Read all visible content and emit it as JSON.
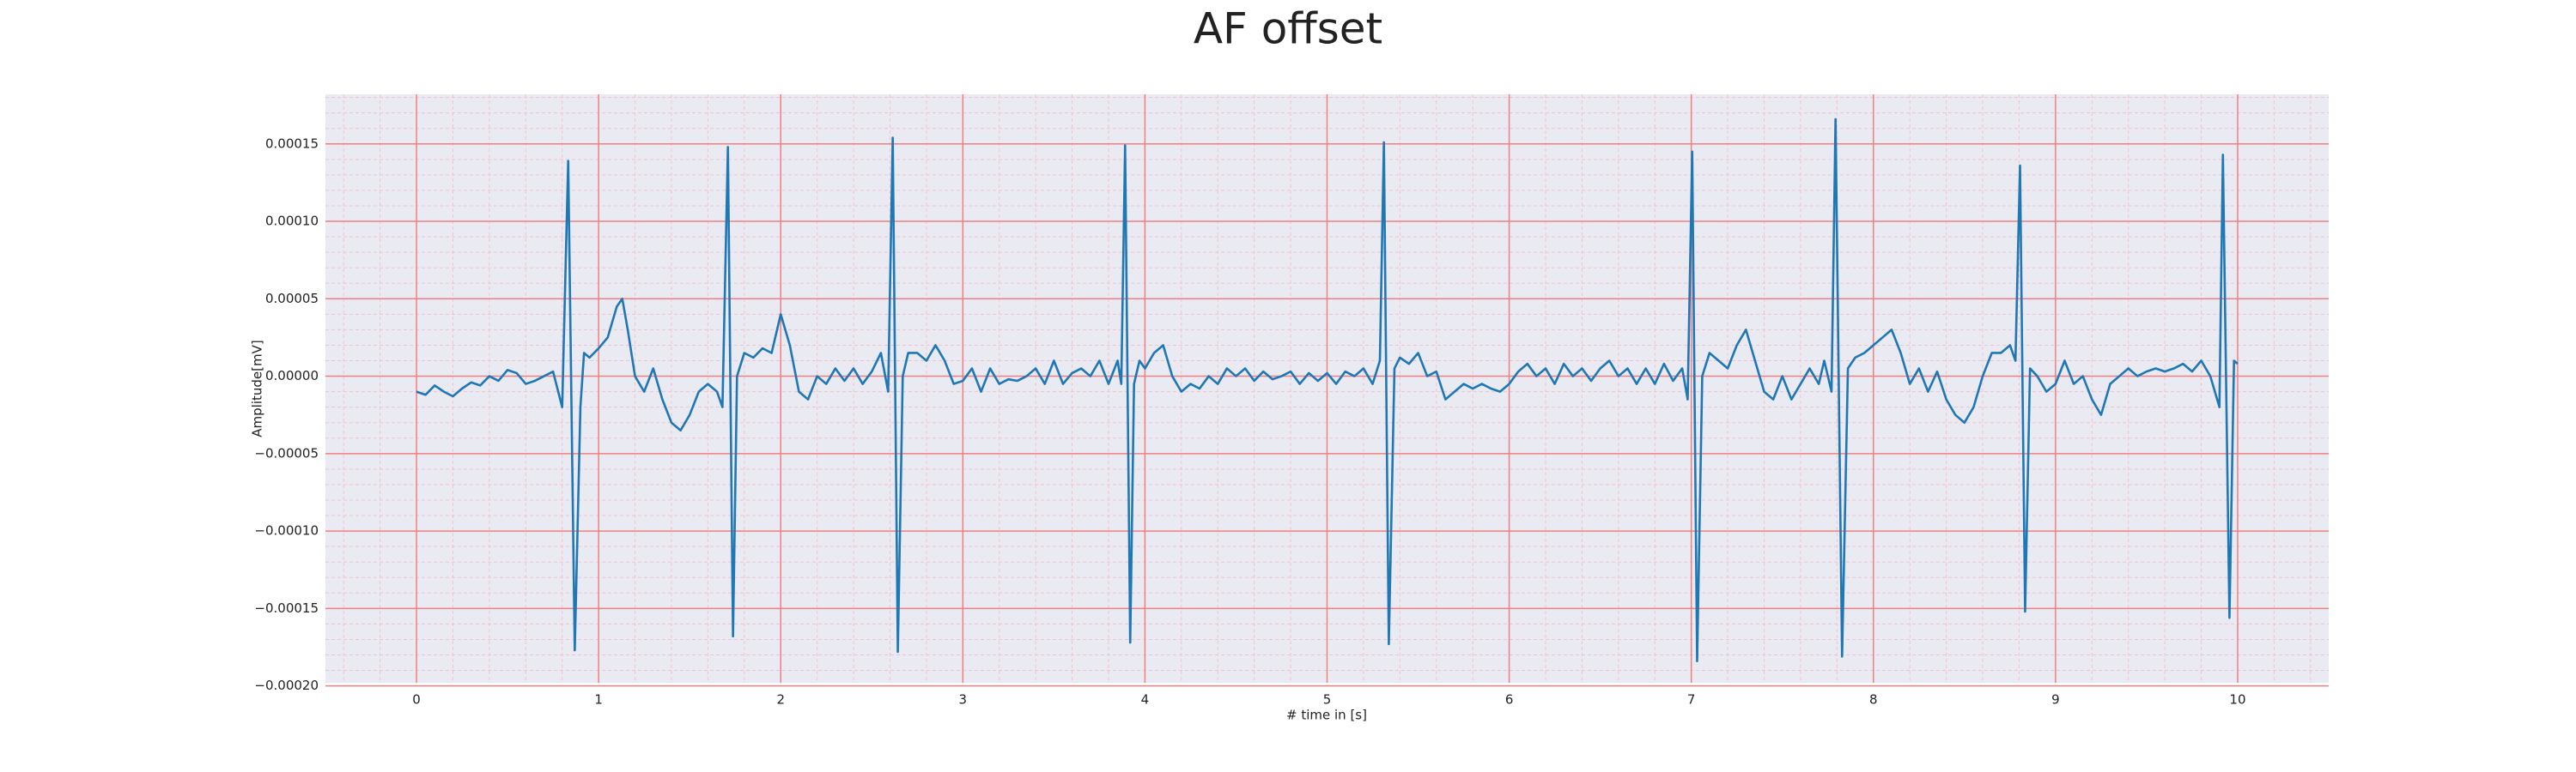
{
  "chart_data": {
    "type": "line",
    "title": "AF offset",
    "xlabel": "# time in [s]",
    "ylabel": "Amplitude[mV]",
    "xlim": [
      -0.5,
      10.5
    ],
    "ylim": [
      -0.000198,
      0.000182
    ],
    "xticks": [
      0,
      1,
      2,
      3,
      4,
      5,
      6,
      7,
      8,
      9,
      10
    ],
    "yticks": [
      {
        "value": -0.0002,
        "label": "−0.00020"
      },
      {
        "value": -0.00015,
        "label": "−0.00015"
      },
      {
        "value": -0.0001,
        "label": "−0.00010"
      },
      {
        "value": -5e-05,
        "label": "−0.00005"
      },
      {
        "value": 0,
        "label": "0.00000"
      },
      {
        "value": 5e-05,
        "label": "0.00005"
      },
      {
        "value": 0.0001,
        "label": "0.00010"
      },
      {
        "value": 0.00015,
        "label": "0.00015"
      }
    ],
    "grid": true,
    "grid_color": "#f08080",
    "minor_grid": {
      "x": 0.2,
      "y": 1e-05,
      "color": "#f4c4cc"
    },
    "background": "#eaeaf2",
    "x": [
      0,
      0.05,
      0.1,
      0.15,
      0.2,
      0.25,
      0.3,
      0.35,
      0.4,
      0.45,
      0.5,
      0.55,
      0.6,
      0.65,
      0.7,
      0.75,
      0.8,
      0.833,
      0.869,
      0.9,
      0.92,
      0.95,
      1.0,
      1.05,
      1.1,
      1.13,
      1.16,
      1.2,
      1.25,
      1.3,
      1.35,
      1.4,
      1.45,
      1.5,
      1.55,
      1.6,
      1.65,
      1.68,
      1.71,
      1.738,
      1.76,
      1.8,
      1.85,
      1.9,
      1.95,
      2.0,
      2.05,
      2.1,
      2.15,
      2.2,
      2.25,
      2.3,
      2.35,
      2.4,
      2.45,
      2.5,
      2.55,
      2.59,
      2.615,
      2.643,
      2.67,
      2.7,
      2.75,
      2.8,
      2.85,
      2.9,
      2.95,
      3.0,
      3.05,
      3.1,
      3.15,
      3.2,
      3.25,
      3.3,
      3.35,
      3.4,
      3.45,
      3.5,
      3.55,
      3.6,
      3.65,
      3.7,
      3.75,
      3.8,
      3.85,
      3.87,
      3.891,
      3.919,
      3.94,
      3.97,
      4.0,
      4.05,
      4.1,
      4.15,
      4.2,
      4.25,
      4.3,
      4.35,
      4.4,
      4.45,
      4.5,
      4.55,
      4.6,
      4.65,
      4.7,
      4.75,
      4.8,
      4.85,
      4.9,
      4.95,
      5.0,
      5.05,
      5.1,
      5.15,
      5.2,
      5.25,
      5.29,
      5.312,
      5.339,
      5.37,
      5.4,
      5.45,
      5.5,
      5.55,
      5.6,
      5.65,
      5.7,
      5.75,
      5.8,
      5.85,
      5.9,
      5.95,
      6.0,
      6.05,
      6.1,
      6.15,
      6.2,
      6.25,
      6.3,
      6.35,
      6.4,
      6.45,
      6.5,
      6.55,
      6.6,
      6.65,
      6.7,
      6.75,
      6.8,
      6.85,
      6.9,
      6.95,
      6.98,
      7.005,
      7.032,
      7.06,
      7.1,
      7.15,
      7.2,
      7.25,
      7.3,
      7.35,
      7.4,
      7.45,
      7.5,
      7.55,
      7.6,
      7.65,
      7.7,
      7.73,
      7.77,
      7.792,
      7.828,
      7.86,
      7.9,
      7.95,
      8.0,
      8.05,
      8.1,
      8.15,
      8.2,
      8.25,
      8.3,
      8.35,
      8.4,
      8.45,
      8.5,
      8.55,
      8.6,
      8.65,
      8.7,
      8.75,
      8.78,
      8.805,
      8.833,
      8.86,
      8.9,
      8.95,
      9.0,
      9.05,
      9.1,
      9.15,
      9.2,
      9.25,
      9.3,
      9.35,
      9.4,
      9.45,
      9.5,
      9.55,
      9.6,
      9.65,
      9.7,
      9.75,
      9.8,
      9.85,
      9.9,
      9.919,
      9.955,
      9.98,
      10.0
    ],
    "series": [
      {
        "name": "AF offset",
        "color": "#1f77b4",
        "values": [
          -1e-05,
          -1.2e-05,
          -6e-06,
          -1e-05,
          -1.3e-05,
          -8e-06,
          -4e-06,
          -6e-06,
          0,
          -3e-06,
          4e-06,
          2e-06,
          -5e-06,
          -3e-06,
          0,
          3e-06,
          -2e-05,
          0.000139,
          -0.000177,
          -2e-05,
          1.5e-05,
          1.2e-05,
          1.8e-05,
          2.5e-05,
          4.5e-05,
          5e-05,
          3e-05,
          0,
          -1e-05,
          5e-06,
          -1.5e-05,
          -3e-05,
          -3.5e-05,
          -2.5e-05,
          -1e-05,
          -5e-06,
          -1e-05,
          -2e-05,
          0.000148,
          -0.000168,
          0,
          1.5e-05,
          1.2e-05,
          1.8e-05,
          1.5e-05,
          4e-05,
          2e-05,
          -1e-05,
          -1.5e-05,
          0,
          -5e-06,
          5e-06,
          -3e-06,
          5e-06,
          -5e-06,
          3e-06,
          1.5e-05,
          -1e-05,
          0.000154,
          -0.000178,
          0,
          1.5e-05,
          1.5e-05,
          1e-05,
          2e-05,
          1e-05,
          -5e-06,
          -3e-06,
          5e-06,
          -1e-05,
          5e-06,
          -5e-06,
          -2e-06,
          -3e-06,
          0,
          5e-06,
          -5e-06,
          1e-05,
          -5e-06,
          2e-06,
          5e-06,
          0,
          1e-05,
          -5e-06,
          1e-05,
          -5e-06,
          0.000149,
          -0.000172,
          -5e-06,
          1e-05,
          5e-06,
          1.5e-05,
          2e-05,
          0,
          -1e-05,
          -5e-06,
          -8e-06,
          0,
          -5e-06,
          5e-06,
          0,
          5e-06,
          -3e-06,
          3e-06,
          -2e-06,
          0,
          3e-06,
          -5e-06,
          2e-06,
          -3e-06,
          2e-06,
          -5e-06,
          3e-06,
          0,
          5e-06,
          -5e-06,
          1e-05,
          0.000151,
          -0.000173,
          5e-06,
          1.2e-05,
          8e-06,
          1.5e-05,
          0,
          3e-06,
          -1.5e-05,
          -1e-05,
          -5e-06,
          -8e-06,
          -5e-06,
          -8e-06,
          -1e-05,
          -5e-06,
          3e-06,
          8e-06,
          0,
          5e-06,
          -5e-06,
          8e-06,
          0,
          5e-06,
          -3e-06,
          5e-06,
          1e-05,
          0,
          5e-06,
          -5e-06,
          5e-06,
          -5e-06,
          8e-06,
          -3e-06,
          5e-06,
          -1.5e-05,
          0.000145,
          -0.000184,
          0,
          1.5e-05,
          1e-05,
          5e-06,
          2e-05,
          3e-05,
          1e-05,
          -1e-05,
          -1.5e-05,
          0,
          -1.5e-05,
          -5e-06,
          5e-06,
          -5e-06,
          1e-05,
          -1e-05,
          0.000166,
          -0.000181,
          5e-06,
          1.2e-05,
          1.5e-05,
          2e-05,
          2.5e-05,
          3e-05,
          1.5e-05,
          -5e-06,
          5e-06,
          -1e-05,
          3e-06,
          -1.5e-05,
          -2.5e-05,
          -3e-05,
          -2e-05,
          0,
          1.5e-05,
          1.5e-05,
          2e-05,
          1e-05,
          0.000136,
          -0.000152,
          5e-06,
          0,
          -1e-05,
          -5e-06,
          1e-05,
          -5e-06,
          0,
          -1.5e-05,
          -2.5e-05,
          -5e-06,
          0,
          5e-06,
          0,
          3e-06,
          5e-06,
          3e-06,
          5e-06,
          8e-06,
          3e-06,
          1e-05,
          0,
          -2e-05,
          0.000143,
          -0.000156,
          1e-05,
          8e-06
        ]
      }
    ]
  }
}
